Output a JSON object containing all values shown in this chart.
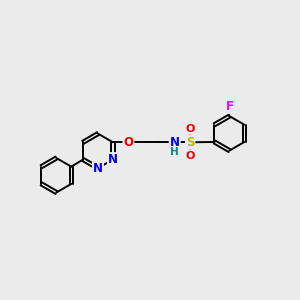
{
  "bg_color": "#ebebeb",
  "bond_color": "#000000",
  "bond_width": 1.4,
  "atom_colors": {
    "N": "#0000ee",
    "O": "#ee0000",
    "S": "#bbbb00",
    "F": "#ee00ee",
    "H": "#008888",
    "C": "#000000"
  },
  "font_size": 8.5,
  "figsize": [
    3.0,
    3.0
  ],
  "dpi": 100
}
